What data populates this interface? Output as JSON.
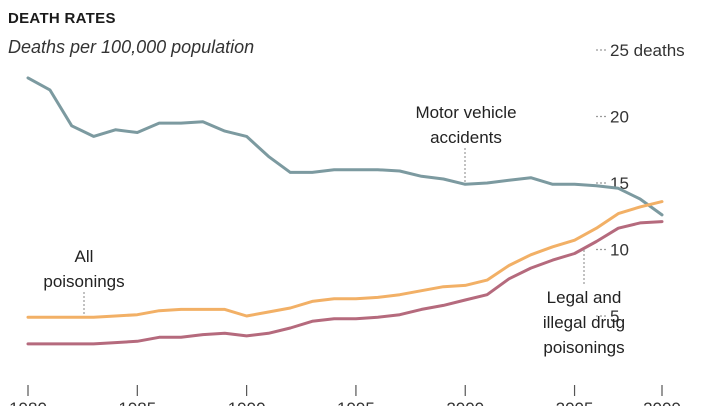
{
  "chart_data": {
    "type": "line",
    "title": "DEATH RATES",
    "subtitle": "Deaths per 100,000 population",
    "y_ticks": [
      {
        "value": 25,
        "label": "25 deaths"
      },
      {
        "value": 20,
        "label": "20"
      },
      {
        "value": 15,
        "label": "15"
      },
      {
        "value": 10,
        "label": "10"
      },
      {
        "value": 5,
        "label": "5"
      }
    ],
    "x_ticks": [
      1980,
      1985,
      1990,
      1995,
      2000,
      2005,
      2009
    ],
    "xlim": [
      1980,
      2009
    ],
    "ylim": [
      0,
      26
    ],
    "x": [
      1980,
      1981,
      1982,
      1983,
      1984,
      1985,
      1986,
      1987,
      1988,
      1989,
      1990,
      1991,
      1992,
      1993,
      1994,
      1995,
      1996,
      1997,
      1998,
      1999,
      2000,
      2001,
      2002,
      2003,
      2004,
      2005,
      2006,
      2007,
      2008,
      2009
    ],
    "series": [
      {
        "key": "motor",
        "color": "#7c9aa0",
        "values": [
          22.9,
          22.0,
          19.3,
          18.5,
          19.0,
          18.8,
          19.5,
          19.5,
          19.6,
          18.9,
          18.5,
          17.0,
          15.8,
          15.8,
          16.0,
          16.0,
          16.0,
          15.9,
          15.5,
          15.3,
          14.9,
          15.0,
          15.2,
          15.4,
          14.9,
          14.9,
          14.8,
          14.6,
          13.8,
          12.6
        ]
      },
      {
        "key": "all_poisonings",
        "color": "#f2b066",
        "values": [
          4.9,
          4.9,
          4.9,
          4.9,
          5.0,
          5.1,
          5.4,
          5.5,
          5.5,
          5.5,
          5.0,
          5.3,
          5.6,
          6.1,
          6.3,
          6.3,
          6.4,
          6.6,
          6.9,
          7.2,
          7.3,
          7.7,
          8.8,
          9.6,
          10.2,
          10.7,
          11.6,
          12.7,
          13.2,
          13.6
        ]
      },
      {
        "key": "drug_poisonings",
        "color": "#b56a7d",
        "values": [
          2.9,
          2.9,
          2.9,
          2.9,
          3.0,
          3.1,
          3.4,
          3.4,
          3.6,
          3.7,
          3.5,
          3.7,
          4.1,
          4.6,
          4.8,
          4.8,
          4.9,
          5.1,
          5.5,
          5.8,
          6.2,
          6.6,
          7.8,
          8.6,
          9.2,
          9.7,
          10.6,
          11.6,
          12.0,
          12.1
        ]
      }
    ],
    "annotations": [
      {
        "key": "motor",
        "lines": [
          "Motor vehicle",
          "accidents"
        ]
      },
      {
        "key": "all_poisonings",
        "lines": [
          "All",
          "poisonings"
        ]
      },
      {
        "key": "drug_poisonings",
        "lines": [
          "Legal and",
          "illegal drug",
          "poisonings"
        ]
      }
    ]
  }
}
